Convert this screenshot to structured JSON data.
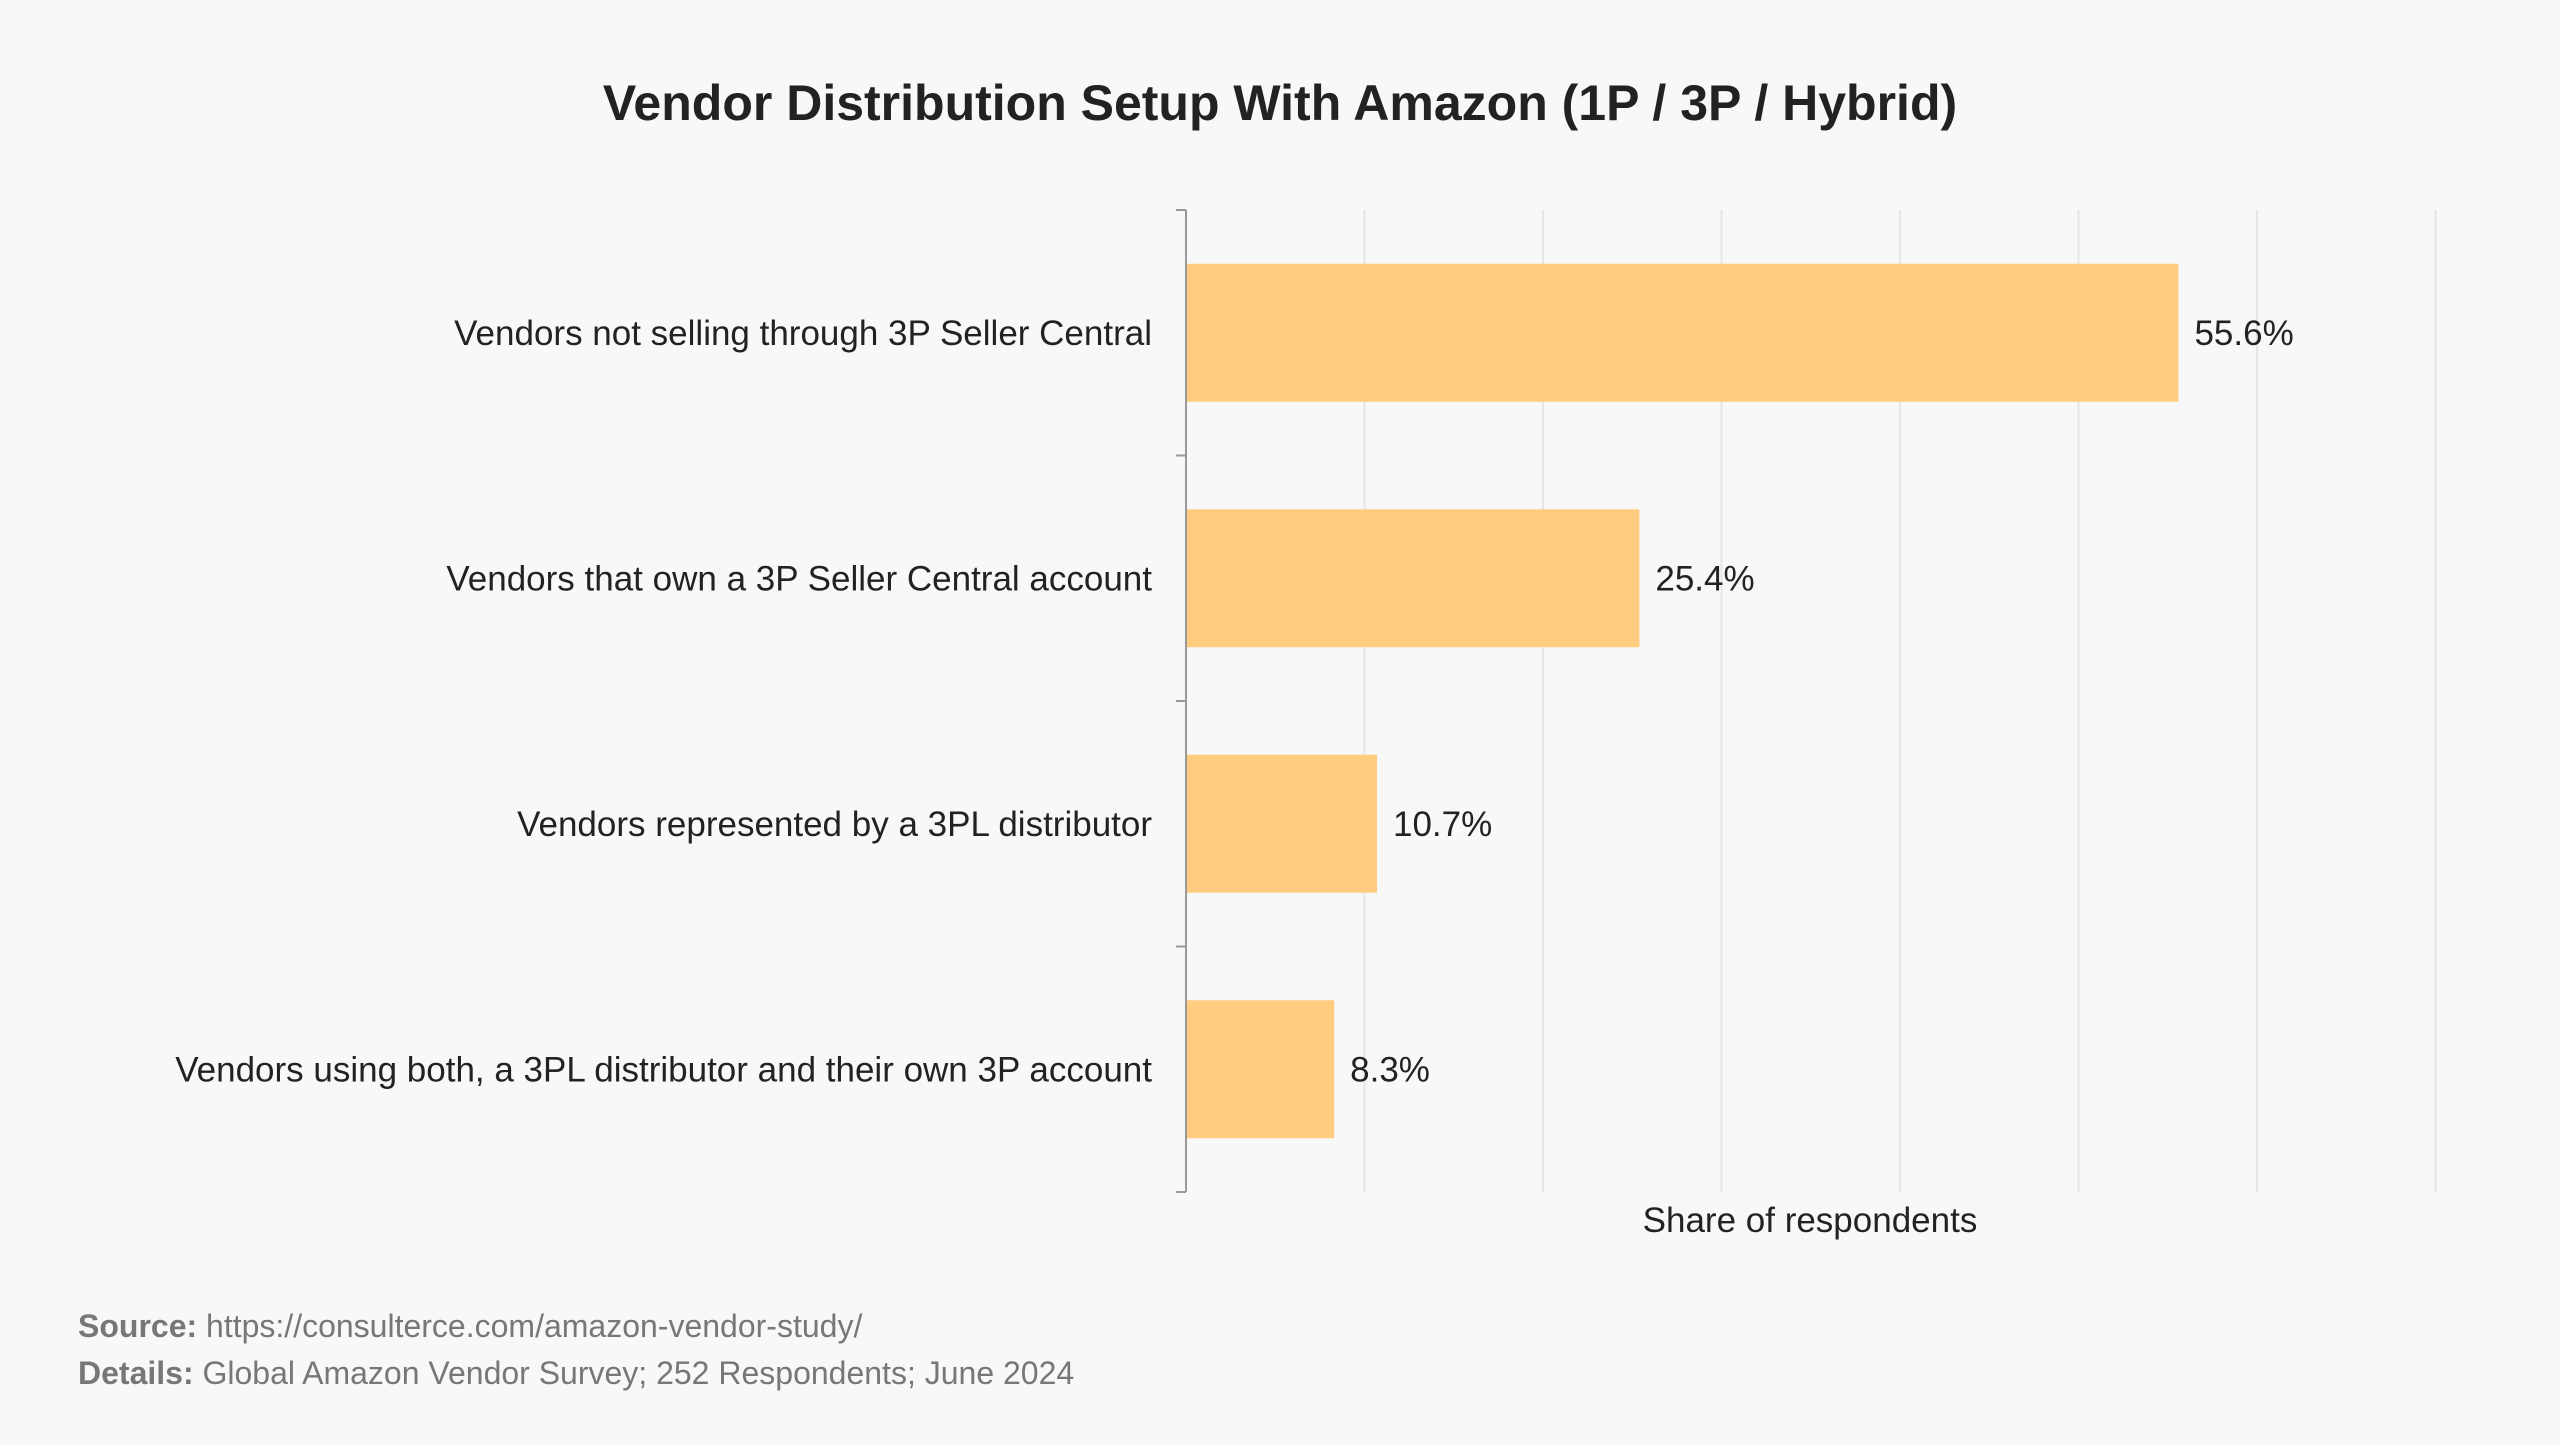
{
  "chart_data": {
    "type": "bar",
    "orientation": "horizontal",
    "title": "Vendor Distribution Setup With Amazon (1P / 3P / Hybrid)",
    "xlabel": "Share of respondents",
    "ylabel": "",
    "categories": [
      "Vendors not selling through 3P Seller Central",
      "Vendors that own a 3P Seller Central account",
      "Vendors represented by a 3PL distributor",
      "Vendors using both, a 3PL distributor and their own 3P account"
    ],
    "values": [
      55.6,
      25.4,
      10.7,
      8.3
    ],
    "value_labels": [
      "55.6%",
      "25.4%",
      "10.7%",
      "8.3%"
    ],
    "xlim": [
      0,
      70
    ],
    "grid": true,
    "tick_labels_shown": false,
    "bar_color": "#ffcc80",
    "gridline_color": "#e6e6e6",
    "axis_color": "#999999"
  },
  "footer": {
    "source_label": "Source:",
    "source_text": "https://consulterce.com/amazon-vendor-study/",
    "details_label": "Details:",
    "details_text": "Global Amazon Vendor Survey; 252 Respondents; June 2024"
  }
}
